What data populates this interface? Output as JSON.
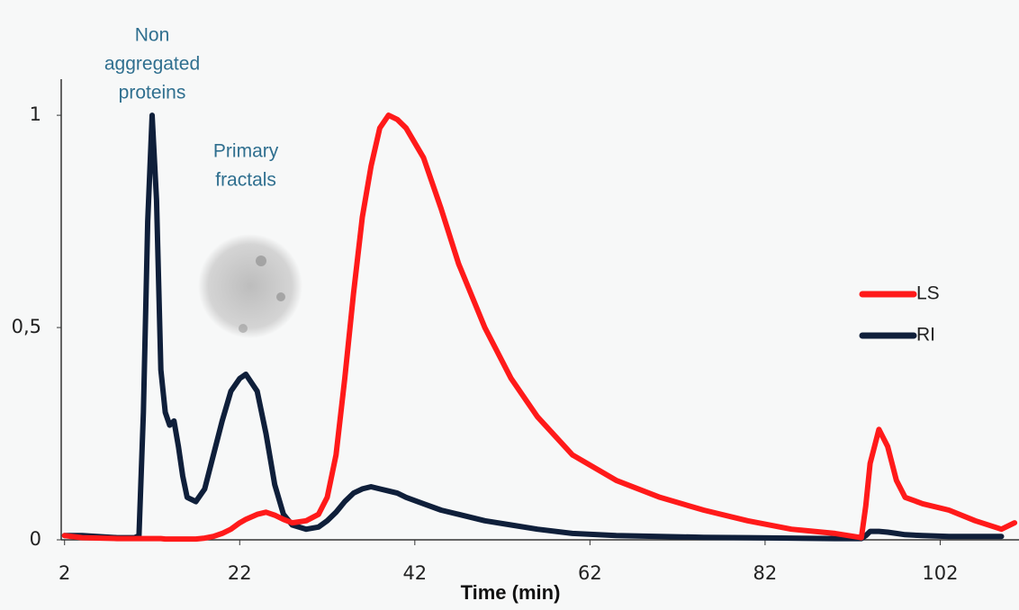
{
  "chart_data": {
    "type": "line",
    "x_label": "Time (min)",
    "annotations": [
      {
        "lines": [
          "Non",
          "aggregated",
          "proteins"
        ],
        "x": 12,
        "y": 1.12
      },
      {
        "lines": [
          "Primary",
          "fractals"
        ],
        "x": 22.7,
        "y": 0.88
      }
    ],
    "x": [
      2,
      4,
      8,
      10,
      10.5,
      11,
      11.5,
      12,
      12.5,
      13,
      13.5,
      14,
      14.5,
      15,
      15.5,
      16,
      17,
      18,
      19,
      20,
      21,
      22,
      22.7,
      24,
      25,
      26,
      27,
      28,
      29.6,
      31,
      32,
      33,
      34,
      35,
      36,
      37,
      38,
      39,
      40,
      41,
      43,
      45,
      47,
      50,
      53,
      56,
      60,
      65,
      70,
      75,
      80,
      85,
      90,
      93,
      93.5,
      94,
      95,
      96,
      97,
      98,
      100,
      103,
      106,
      109,
      110.5
    ],
    "series": [
      {
        "name": "LS",
        "color": "#ff1a1a",
        "values": [
          0.01,
          0.005,
          0.003,
          0.003,
          0.003,
          0.003,
          0.003,
          0.003,
          0.003,
          0.003,
          0.002,
          0.002,
          0.002,
          0.002,
          0.002,
          0.002,
          0.002,
          0.004,
          0.008,
          0.015,
          0.025,
          0.04,
          0.048,
          0.06,
          0.065,
          0.058,
          0.048,
          0.04,
          0.045,
          0.06,
          0.1,
          0.2,
          0.38,
          0.58,
          0.76,
          0.88,
          0.97,
          1.0,
          0.99,
          0.97,
          0.9,
          0.78,
          0.65,
          0.5,
          0.38,
          0.29,
          0.2,
          0.14,
          0.1,
          0.07,
          0.045,
          0.025,
          0.015,
          0.005,
          0.08,
          0.18,
          0.26,
          0.22,
          0.14,
          0.1,
          0.085,
          0.07,
          0.045,
          0.025,
          0.04
        ]
      },
      {
        "name": "RI",
        "color": "#0f1f3a",
        "values": [
          0.01,
          0.01,
          0.005,
          0.005,
          0.01,
          0.3,
          0.75,
          1.0,
          0.8,
          0.4,
          0.3,
          0.27,
          0.28,
          0.22,
          0.15,
          0.1,
          0.09,
          0.12,
          0.2,
          0.28,
          0.35,
          0.38,
          0.39,
          0.35,
          0.25,
          0.13,
          0.06,
          0.035,
          0.025,
          0.03,
          0.045,
          0.065,
          0.09,
          0.11,
          0.12,
          0.125,
          0.12,
          0.115,
          0.11,
          0.1,
          0.085,
          0.07,
          0.06,
          0.045,
          0.035,
          0.025,
          0.015,
          0.01,
          0.008,
          0.006,
          0.005,
          0.004,
          0.003,
          0.003,
          0.01,
          0.02,
          0.02,
          0.018,
          0.015,
          0.012,
          0.01,
          0.008,
          0.008,
          0.008,
          null
        ]
      }
    ],
    "xlim": [
      1,
      111
    ],
    "xticks": [
      2,
      22,
      42,
      62,
      82,
      102
    ],
    "ylim": [
      0,
      1.085
    ],
    "yticks": [
      0,
      {
        "value": 0.5,
        "label": "0,5"
      },
      1
    ],
    "legend": "right"
  }
}
